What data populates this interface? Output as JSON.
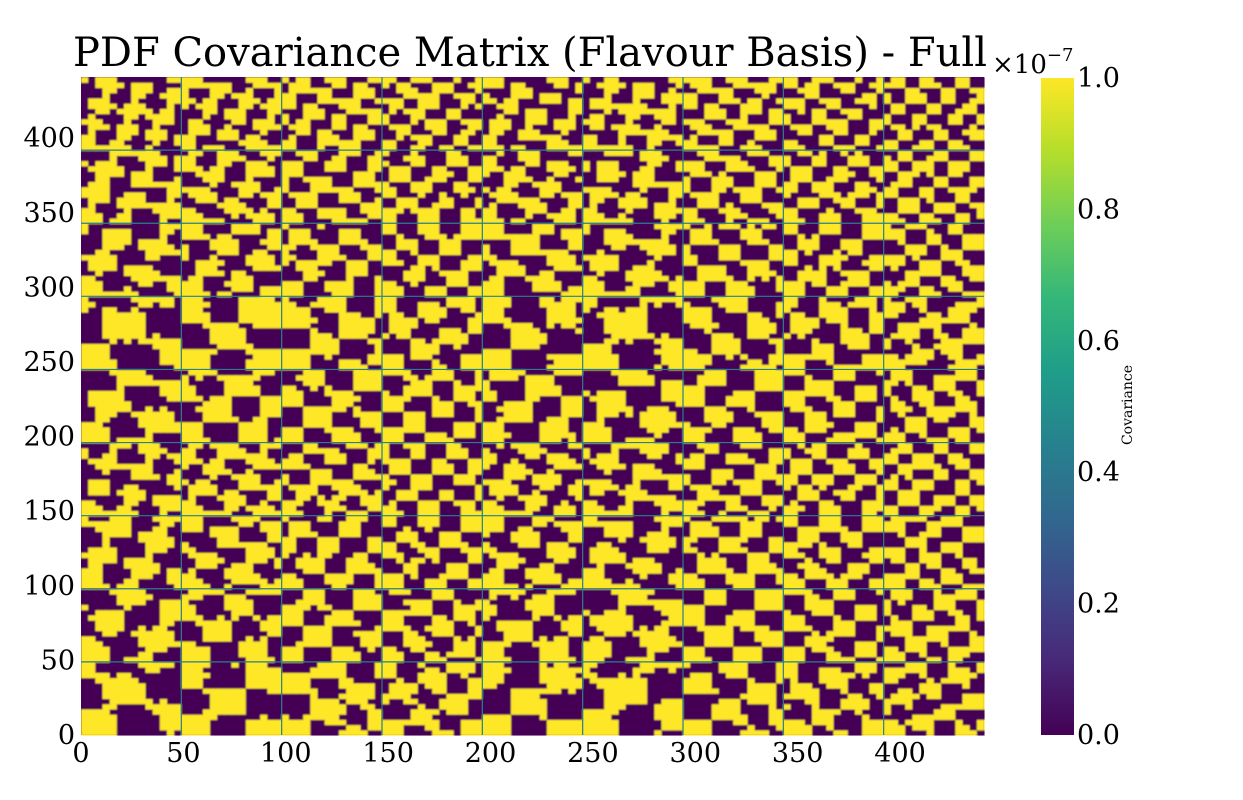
{
  "chart_data": {
    "type": "heatmap",
    "title": "PDF Covariance Matrix (Flavour Basis) - Full",
    "matrix_size": 441,
    "block_size": 49,
    "blocks_per_side": 9,
    "x_ticks": [
      0,
      50,
      100,
      150,
      200,
      250,
      300,
      350,
      400
    ],
    "y_ticks": [
      0,
      50,
      100,
      150,
      200,
      250,
      300,
      350,
      400
    ],
    "xlim": [
      0,
      441
    ],
    "ylim": [
      0,
      441
    ],
    "colormap": "viridis",
    "colorbar": {
      "label": "Covariance",
      "multiplier_base": "×10",
      "multiplier_exponent": "−7",
      "vmin": 0.0,
      "vmax": 1.0,
      "ticks": [
        "0.0",
        "0.2",
        "0.4",
        "0.6",
        "0.8",
        "1.0"
      ],
      "colors": [
        "#440154",
        "#482878",
        "#3e4989",
        "#31688e",
        "#26828e",
        "#1f9e89",
        "#35b779",
        "#6ece58",
        "#b5de2b",
        "#fde725"
      ]
    },
    "description": "Values saturate the colour scale; most cells are either at vmin (dark purple) or at vmax (yellow), with a repeating 9×9 block pattern."
  }
}
